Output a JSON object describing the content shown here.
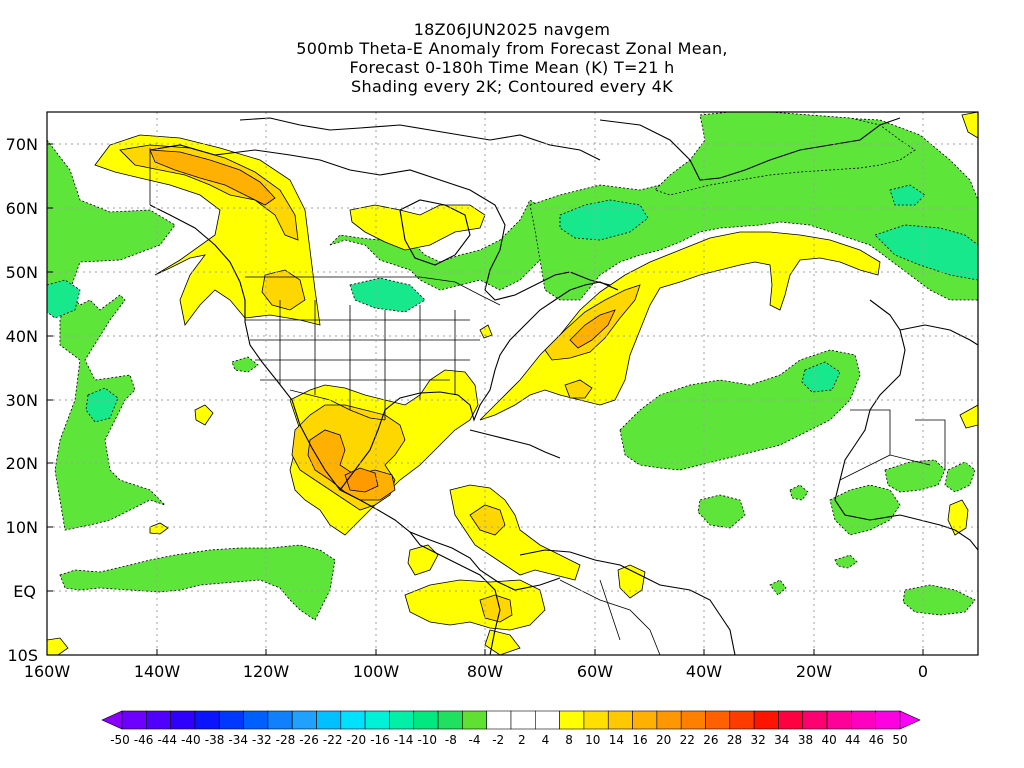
{
  "title_lines": [
    "18Z06JUN2025 navgem",
    "500mb Theta-E Anomaly from Forecast Zonal Mean,",
    "Forecast 0-180h Time Mean (K) T=21 h",
    "Shading every 2K; Contoured every 4K"
  ],
  "map": {
    "lat_labels": [
      "70N",
      "60N",
      "50N",
      "40N",
      "30N",
      "20N",
      "10N",
      "EQ",
      "10S"
    ],
    "lon_labels": [
      "160W",
      "140W",
      "120W",
      "100W",
      "80W",
      "60W",
      "40W",
      "20W",
      "0"
    ],
    "extent": {
      "lon_min": -160,
      "lon_max": 10,
      "lat_min": -10,
      "lat_max": 75
    },
    "graticule": "dotted"
  },
  "colorbar": {
    "labels": [
      "-50",
      "-46",
      "-44",
      "-40",
      "-38",
      "-34",
      "-32",
      "-28",
      "-26",
      "-22",
      "-20",
      "-16",
      "-14",
      "-10",
      "-8",
      "-4",
      "-2",
      "2",
      "4",
      "8",
      "10",
      "14",
      "16",
      "20",
      "22",
      "26",
      "28",
      "32",
      "34",
      "38",
      "40",
      "44",
      "46",
      "50"
    ],
    "colors": [
      "#8a00ff",
      "#6e00ff",
      "#5000ff",
      "#3000ff",
      "#0a14ff",
      "#0038ff",
      "#0060ff",
      "#1080ff",
      "#20a0ff",
      "#00c0ff",
      "#00e0ff",
      "#00f0d8",
      "#00f0a8",
      "#00e880",
      "#20e060",
      "#60e030",
      "#ffffff",
      "#ffffff",
      "#ffffff",
      "#ffff00",
      "#ffe000",
      "#ffc800",
      "#ffb000",
      "#ff9800",
      "#ff8000",
      "#ff6000",
      "#ff3c00",
      "#ff1400",
      "#ff0040",
      "#ff0070",
      "#ff0098",
      "#ff00c0",
      "#ff00e0",
      "#ff00ff"
    ]
  },
  "colors": {
    "green": "#5ee53a",
    "aqua_green": "#18e88c",
    "yellow": "#ffff00",
    "gold": "#ffd700",
    "orange": "#ffb000",
    "deep_orange": "#ff9a00",
    "coast": "#000000",
    "grid": "#a0a0a0"
  }
}
